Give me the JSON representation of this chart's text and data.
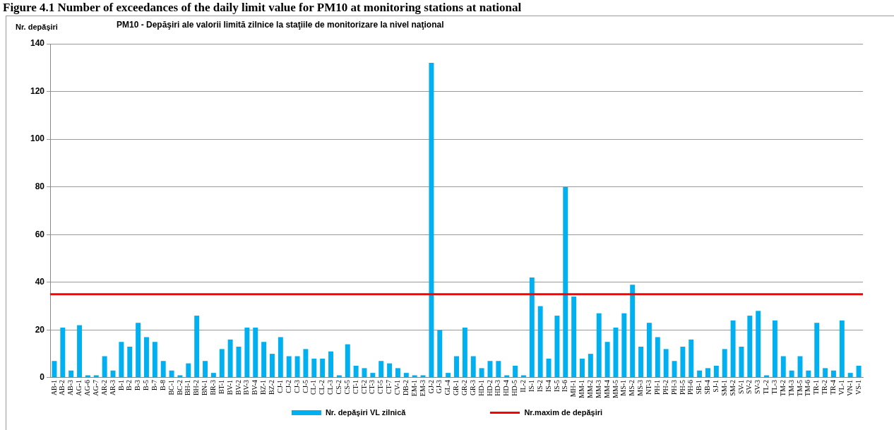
{
  "chart_data": {
    "type": "bar",
    "title": "PM10 -  Depăşiri ale valorii limită zilnice la staţiile de monitorizare la nivel naţional",
    "ylabel": "Nr. depăşiri",
    "annotations": [
      "Figure 4.1 Number of exceedances of the daily limit value for PM10 at monitoring stations at national"
    ],
    "categories": [
      "AB-1",
      "AB-2",
      "AB-3",
      "AG-1",
      "AG-6",
      "AG-7",
      "AR-2",
      "AR-3",
      "B-1",
      "B-2",
      "B-3",
      "B-5",
      "B-7",
      "B-8",
      "BC-1",
      "BC-2",
      "BH-1",
      "BH-2",
      "BN-1",
      "BR-3",
      "BT-1",
      "BV-1",
      "BV-2",
      "BV-3",
      "BV-4",
      "BZ-1",
      "BZ-2",
      "CJ-1",
      "CJ-2",
      "CJ-3",
      "CJ-5",
      "CL-1",
      "CL-2",
      "CL-3",
      "CS-2",
      "CS-5",
      "CT-1",
      "CT-2",
      "CT-3",
      "CT-5",
      "CT-7",
      "CV-1",
      "DB-2",
      "EM-1",
      "EM-3",
      "GJ-2",
      "GJ-3",
      "GL-4",
      "GR-1",
      "GR-2",
      "GR-3",
      "HD-1",
      "HD-2",
      "HD-3",
      "HD-4",
      "HD-5",
      "IL-2",
      "IS-1",
      "IS-2",
      "IS-4",
      "IS-5",
      "IS-6",
      "MH-1",
      "MM-1",
      "MM-2",
      "MM-3",
      "MM-4",
      "MM-5",
      "MS-1",
      "MS-2",
      "MS-3",
      "NT-3",
      "PH-1",
      "PH-2",
      "PH-3",
      "PH-5",
      "PH-6",
      "SB-1",
      "SB-4",
      "SJ-1",
      "SM-1",
      "SM-2",
      "SV-1",
      "SV-2",
      "SV-3",
      "TL-2",
      "TL-3",
      "TM-2",
      "TM-3",
      "TM-5",
      "TM-6",
      "TR-1",
      "TR-2",
      "TR-4",
      "VL-1",
      "VN-1",
      "VS-1"
    ],
    "series": [
      {
        "name": "Nr. depăşiri  VL zilnică",
        "color": "#00b0f0",
        "values": [
          7,
          21,
          3,
          22,
          1,
          1,
          9,
          3,
          15,
          13,
          23,
          17,
          15,
          7,
          3,
          1,
          6,
          26,
          7,
          2,
          12,
          16,
          13,
          21,
          21,
          15,
          10,
          17,
          9,
          9,
          12,
          8,
          8,
          11,
          1,
          14,
          5,
          4,
          2,
          7,
          6,
          4,
          2,
          1,
          1,
          132,
          20,
          2,
          9,
          21,
          9,
          4,
          7,
          7,
          1,
          5,
          1,
          42,
          30,
          8,
          26,
          80,
          34,
          8,
          10,
          27,
          15,
          21,
          27,
          39,
          13,
          23,
          17,
          12,
          7,
          13,
          16,
          3,
          4,
          5,
          12,
          24,
          13,
          26,
          28,
          1,
          24,
          9,
          3,
          9,
          3,
          23,
          4,
          3,
          24,
          2,
          5
        ]
      }
    ],
    "ref_lines": [
      {
        "axis": "y",
        "value": 35,
        "label": "Nr.maxim de depăşiri",
        "color": "#ff0000"
      }
    ],
    "ylim": [
      0,
      140
    ],
    "yticks": [
      0,
      20,
      40,
      60,
      80,
      100,
      120,
      140
    ],
    "grid": "y",
    "legend": "bottom"
  }
}
